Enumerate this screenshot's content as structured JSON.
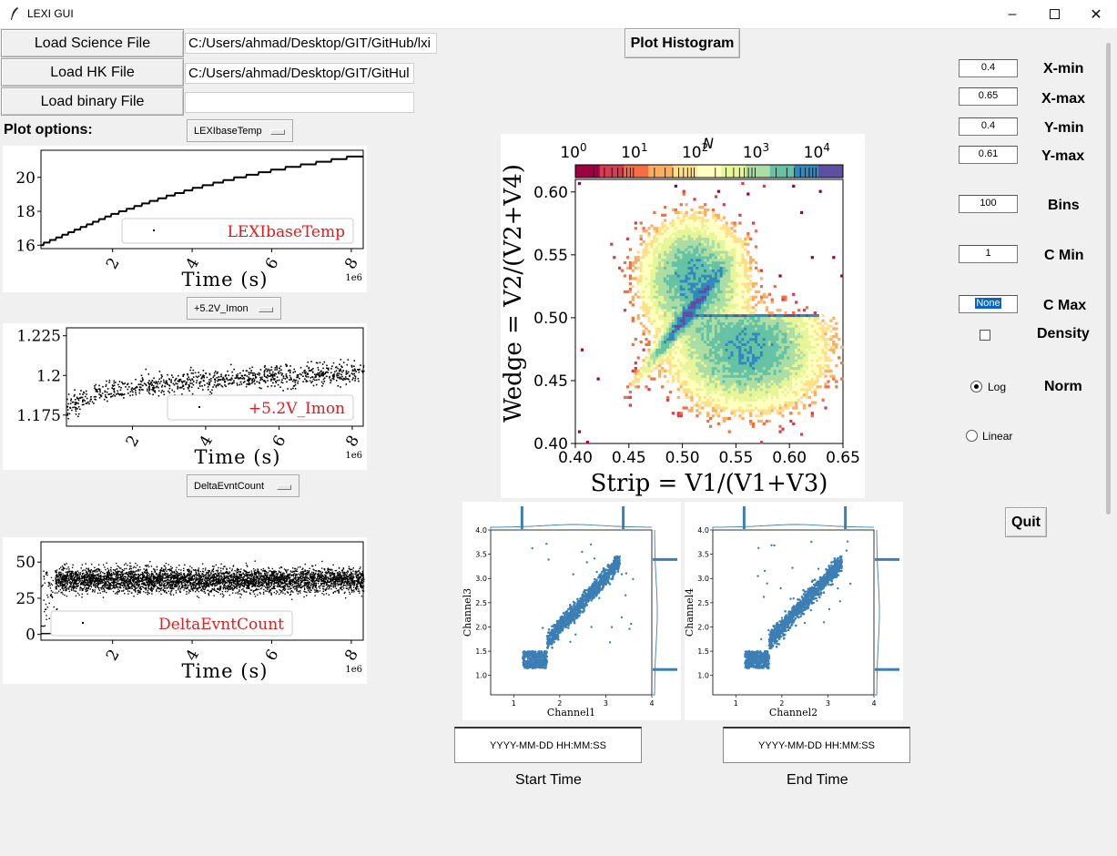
{
  "window": {
    "title": "LEXI GUI"
  },
  "left": {
    "load_science_label": "Load Science File",
    "science_path": "C:/Users/ahmad/Desktop/GIT/GitHub/lxi",
    "load_hk_label": "Load HK File",
    "hk_path": "C:/Users/ahmad/Desktop/GIT/GitHul",
    "load_binary_label": "Load binary File",
    "binary_path": "",
    "plot_options_label": "Plot options:",
    "plot_option_menus": [
      "LEXIbaseTemp",
      "+5.2V_Imon",
      "DeltaEvntCount"
    ]
  },
  "center": {
    "plot_histogram_label": "Plot Histogram"
  },
  "right": {
    "fields": [
      {
        "label": "X-min",
        "value": "0.4"
      },
      {
        "label": "X-max",
        "value": "0.65"
      },
      {
        "label": "Y-min",
        "value": "0.4"
      },
      {
        "label": "Y-max",
        "value": "0.61"
      },
      {
        "label": "Bins",
        "value": "100"
      },
      {
        "label": "C Min",
        "value": "1"
      },
      {
        "label": "C Max",
        "value": "None"
      }
    ],
    "density_label": "Density",
    "density_checked": false,
    "norm_label": "Norm",
    "norm_options": [
      "Log",
      "Linear"
    ],
    "norm_selected": "Log",
    "quit_label": "Quit"
  },
  "time_inputs": {
    "start_value": "YYYY-MM-DD HH:MM:SS",
    "start_label": "Start Time",
    "end_value": "YYYY-MM-DD HH:MM:SS",
    "end_label": "End Time"
  },
  "chart_data": [
    {
      "type": "line",
      "legend": "LEXIbaseTemp",
      "xlabel": "Time (s)",
      "x_offset_label": "1e6",
      "xticks": [
        2,
        4,
        6,
        8
      ],
      "yticks": [
        16,
        18,
        20
      ],
      "xlim": [
        0.2,
        8.3
      ],
      "ylim": [
        15.8,
        21.6
      ],
      "x": [
        0.2,
        1,
        2,
        3,
        4,
        5,
        6,
        7,
        8,
        8.3
      ],
      "y": [
        16.0,
        16.8,
        17.8,
        18.6,
        19.3,
        19.9,
        20.4,
        20.8,
        21.2,
        21.3
      ]
    },
    {
      "type": "scatter",
      "legend": "+5.2V_Imon",
      "xlabel": "Time (s)",
      "x_offset_label": "1e6",
      "xticks": [
        2,
        4,
        6,
        8
      ],
      "yticks": [
        1.175,
        1.2,
        1.225
      ],
      "xlim": [
        0.2,
        8.3
      ],
      "ylim": [
        1.168,
        1.23
      ],
      "trend": {
        "x": [
          0.2,
          1,
          2,
          4,
          6,
          8.3
        ],
        "y": [
          1.18,
          1.19,
          1.193,
          1.197,
          1.2,
          1.202
        ]
      },
      "spread": 0.012
    },
    {
      "type": "scatter",
      "legend": "DeltaEvntCount",
      "xlabel": "Time (s)",
      "x_offset_label": "1e6",
      "xticks": [
        2,
        4,
        6,
        8
      ],
      "yticks": [
        0,
        25,
        50
      ],
      "xlim": [
        0.2,
        8.3
      ],
      "ylim": [
        -4,
        64
      ],
      "mean": 38,
      "spread": 12
    },
    {
      "type": "heatmap",
      "xlabel": "Strip = V1/(V1+V3)",
      "ylabel": "Wedge = V2/(V2+V4)",
      "colorbar_label": "N",
      "colorbar_ticks": [
        "10^0",
        "10^1",
        "10^2",
        "10^3",
        "10^4"
      ],
      "xticks": [
        0.4,
        0.45,
        0.5,
        0.55,
        0.6,
        0.65
      ],
      "yticks": [
        0.4,
        0.45,
        0.5,
        0.55,
        0.6
      ],
      "xlim": [
        0.4,
        0.65
      ],
      "ylim": [
        0.4,
        0.61
      ],
      "colormap": [
        "#9e0142",
        "#d53e4f",
        "#f46d43",
        "#fdae61",
        "#fee08b",
        "#ffffbf",
        "#e6f598",
        "#abdda4",
        "#66c2a5",
        "#3288bd",
        "#5e4fa2"
      ]
    },
    {
      "type": "scatter",
      "xlabel": "Channel1",
      "ylabel": "Channel3",
      "xticks": [
        1,
        2,
        3,
        4
      ],
      "yticks": [
        1.0,
        1.5,
        2.0,
        2.5,
        3.0,
        3.5,
        4.0
      ],
      "xlim": [
        0.5,
        4
      ],
      "ylim": [
        0.6,
        4.0
      ],
      "color": "#3c7fb5"
    },
    {
      "type": "scatter",
      "xlabel": "Channel2",
      "ylabel": "Channel4",
      "xticks": [
        1,
        2,
        3,
        4
      ],
      "yticks": [
        1.0,
        1.5,
        2.0,
        2.5,
        3.0,
        3.5,
        4.0
      ],
      "xlim": [
        0.5,
        4
      ],
      "ylim": [
        0.6,
        4.0
      ],
      "color": "#3c7fb5"
    }
  ]
}
